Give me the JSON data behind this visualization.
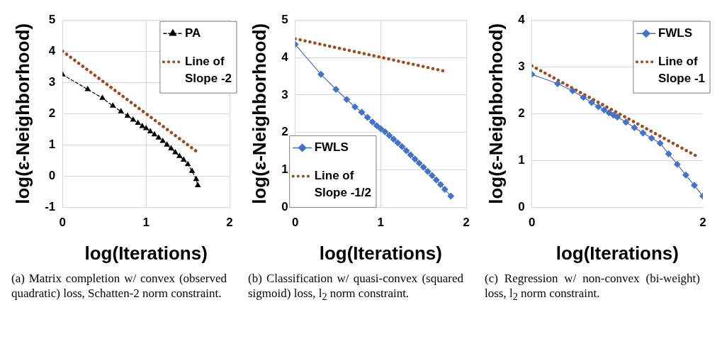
{
  "chart_data": [
    {
      "type": "line",
      "xlabel": "log(Iterations)",
      "ylabel": "log(ε-Neighborhood)",
      "xlim": [
        0,
        2
      ],
      "xticks": [
        0,
        1,
        2
      ],
      "ylim": [
        -1,
        5
      ],
      "yticks": [
        -1,
        0,
        1,
        2,
        3,
        4,
        5
      ],
      "grid": true,
      "legend": "top right",
      "series": [
        {
          "name": "PA",
          "color": "#000000",
          "marker": "triangle",
          "line_style": "dashed",
          "x": [
            0,
            0.301,
            0.477,
            0.602,
            0.699,
            0.778,
            0.845,
            0.903,
            0.954,
            1.0,
            1.05,
            1.1,
            1.15,
            1.2,
            1.25,
            1.3,
            1.35,
            1.4,
            1.45,
            1.5,
            1.55,
            1.6,
            1.62
          ],
          "values": [
            3.25,
            2.78,
            2.5,
            2.25,
            2.07,
            1.93,
            1.8,
            1.7,
            1.6,
            1.53,
            1.43,
            1.33,
            1.23,
            1.12,
            1.0,
            0.88,
            0.76,
            0.64,
            0.52,
            0.38,
            0.16,
            -0.1,
            -0.3
          ]
        },
        {
          "name": "Line of Slope -2",
          "color": "#9e4a1c",
          "marker": "none",
          "line_style": "dotted",
          "x": [
            0,
            1.6
          ],
          "values": [
            4,
            0.8
          ]
        }
      ],
      "annotations": [
        "(a) Matrix completion w/ convex (observed quadratic) loss, Schatten-2 norm constraint."
      ]
    },
    {
      "type": "line",
      "xlabel": "log(Iterations)",
      "ylabel": "log(ε-Neighborhood)",
      "xlim": [
        0,
        2
      ],
      "xticks": [
        0,
        1,
        2
      ],
      "ylim": [
        0,
        5
      ],
      "yticks": [
        0,
        1,
        2,
        3,
        4,
        5
      ],
      "grid": true,
      "legend": "bottom left",
      "series": [
        {
          "name": "FWLS",
          "color": "#4472c4",
          "marker": "diamond",
          "line_style": "solid",
          "x": [
            0,
            0.301,
            0.477,
            0.602,
            0.699,
            0.778,
            0.845,
            0.903,
            0.954,
            1.0,
            1.05,
            1.1,
            1.15,
            1.2,
            1.25,
            1.3,
            1.35,
            1.4,
            1.45,
            1.5,
            1.55,
            1.6,
            1.65,
            1.7,
            1.75,
            1.82
          ],
          "values": [
            4.35,
            3.55,
            3.15,
            2.88,
            2.68,
            2.54,
            2.4,
            2.28,
            2.18,
            2.1,
            2.02,
            1.92,
            1.82,
            1.72,
            1.62,
            1.51,
            1.4,
            1.29,
            1.18,
            1.07,
            0.96,
            0.85,
            0.73,
            0.61,
            0.48,
            0.3
          ]
        },
        {
          "name": "Line of Slope -1/2",
          "color": "#9e4a1c",
          "marker": "none",
          "line_style": "dotted",
          "x": [
            0,
            1.76
          ],
          "values": [
            4.5,
            3.63
          ]
        }
      ],
      "annotations": [
        "(b) Classification w/ quasi-convex (squared sigmoid) loss, l$_{2}$ norm constraint."
      ]
    },
    {
      "type": "line",
      "xlabel": "log(Iterations)",
      "ylabel": "log(ε-Neighborhood)",
      "xlim": [
        0,
        2
      ],
      "xticks": [
        0,
        2
      ],
      "ylim": [
        0,
        4
      ],
      "yticks": [
        0,
        1,
        2,
        3,
        4
      ],
      "grid": "y",
      "legend": "top right",
      "series": [
        {
          "name": "FWLS",
          "color": "#4472c4",
          "marker": "diamond",
          "line_style": "solid",
          "x": [
            0,
            0.301,
            0.477,
            0.602,
            0.699,
            0.778,
            0.845,
            0.903,
            0.954,
            1.0,
            1.1,
            1.2,
            1.3,
            1.4,
            1.5,
            1.6,
            1.7,
            1.8,
            1.9,
            2.0
          ],
          "values": [
            2.84,
            2.64,
            2.49,
            2.35,
            2.24,
            2.15,
            2.08,
            2.02,
            1.97,
            1.93,
            1.82,
            1.7,
            1.59,
            1.48,
            1.37,
            1.14,
            0.92,
            0.69,
            0.47,
            0.24
          ]
        },
        {
          "name": "Line of Slope -1",
          "color": "#9e4a1c",
          "marker": "none",
          "line_style": "dotted",
          "x": [
            0,
            1.93
          ],
          "values": [
            3.02,
            1.09
          ]
        }
      ],
      "annotations": [
        "(c) Regression w/ non-convex (bi-weight) loss, l$_{2}$ norm constraint."
      ]
    }
  ]
}
